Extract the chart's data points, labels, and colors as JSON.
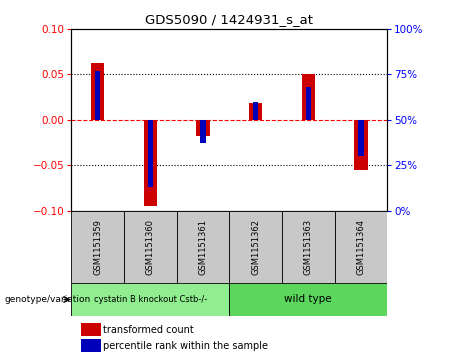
{
  "title": "GDS5090 / 1424931_s_at",
  "samples": [
    "GSM1151359",
    "GSM1151360",
    "GSM1151361",
    "GSM1151362",
    "GSM1151363",
    "GSM1151364"
  ],
  "transformed_counts": [
    0.063,
    -0.095,
    -0.018,
    0.018,
    0.05,
    -0.055
  ],
  "percentile_ranks": [
    77,
    13,
    37,
    60,
    68,
    30
  ],
  "group1_label": "cystatin B knockout Cstb-/-",
  "group1_indices": [
    0,
    1,
    2
  ],
  "group2_label": "wild type",
  "group2_indices": [
    3,
    4,
    5
  ],
  "group_color_1": "#90EE90",
  "group_color_2": "#5CD65C",
  "genotype_label": "genotype/variation",
  "ylim": [
    -0.1,
    0.1
  ],
  "y2lim": [
    0,
    100
  ],
  "yticks": [
    -0.1,
    -0.05,
    0,
    0.05,
    0.1
  ],
  "y2ticks": [
    0,
    25,
    50,
    75,
    100
  ],
  "red_bar_width": 0.25,
  "blue_bar_width": 0.1,
  "red_color": "#CC0000",
  "blue_color": "#0000BB",
  "sample_box_color": "#C8C8C8",
  "legend_red": "transformed count",
  "legend_blue": "percentile rank within the sample"
}
